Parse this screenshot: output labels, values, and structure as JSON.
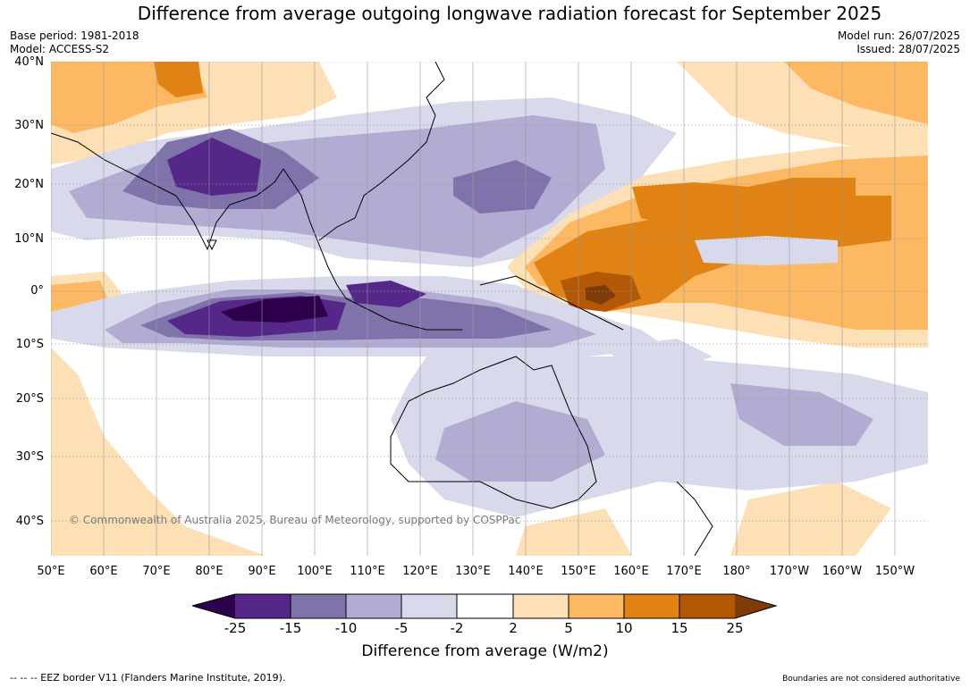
{
  "title": "Difference from average outgoing longwave radiation forecast for September 2025",
  "meta_left": [
    "Base period: 1981-2018",
    "Model: ACCESS-S2"
  ],
  "meta_right": [
    "Model run: 26/07/2025",
    "Issued: 28/07/2025"
  ],
  "lat_labels": [
    "40°N",
    "30°N",
    "20°N",
    "10°N",
    "0°",
    "10°S",
    "20°S",
    "30°S",
    "40°S"
  ],
  "lon_labels": [
    "50°E",
    "60°E",
    "70°E",
    "80°E",
    "90°E",
    "100°E",
    "110°E",
    "120°E",
    "130°E",
    "140°E",
    "150°E",
    "160°E",
    "170°E",
    "180°",
    "170°W",
    "160°W",
    "150°W"
  ],
  "copyright": "© Commonwealth of Australia 2025, Bureau of Meteorology, supported by COSPPac",
  "colorbar": {
    "title": "Difference from average (W/m2)",
    "ticks": [
      "-25",
      "-15",
      "-10",
      "-5",
      "-2",
      "2",
      "5",
      "10",
      "15",
      "25"
    ],
    "colors": [
      "#2d004b",
      "#542788",
      "#8073ac",
      "#b2abd2",
      "#d8daeb",
      "#ffffff",
      "#fee0b6",
      "#fdb863",
      "#e08214",
      "#b35806",
      "#7f3b08"
    ]
  },
  "footer_left": "--  --  -- EEZ border V11 (Flanders Marine Institute, 2019).",
  "footer_right": "Boundaries are not considered authoritative"
}
